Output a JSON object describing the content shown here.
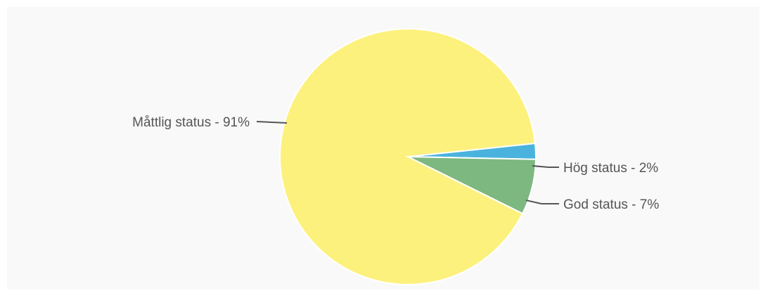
{
  "chart_data": {
    "type": "pie",
    "slices": [
      {
        "label": "Måttlig status  - 91%",
        "value": 91,
        "color": "#fdf17e"
      },
      {
        "label": "Hög status - 2%",
        "value": 2,
        "color": "#4ab3dd"
      },
      {
        "label": "God status - 7%",
        "value": 7,
        "color": "#7cb87f"
      }
    ]
  }
}
